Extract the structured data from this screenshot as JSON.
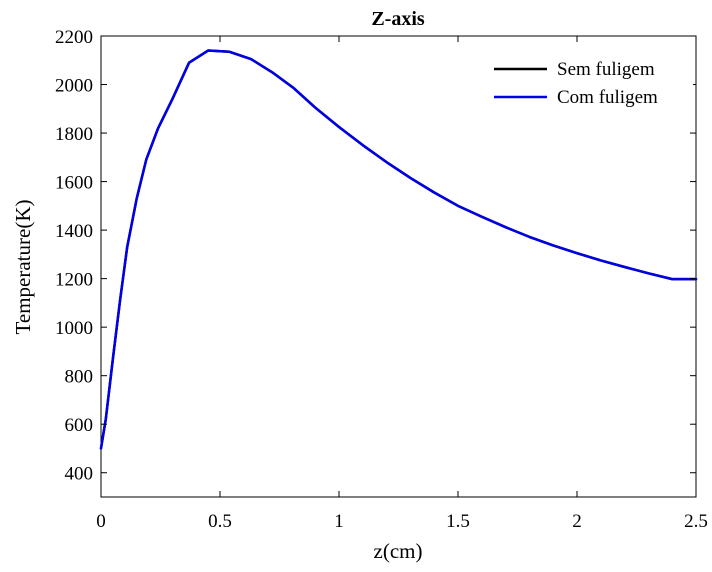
{
  "chart_data": {
    "type": "line",
    "title": "Z-axis",
    "xlabel": "z(cm)",
    "ylabel": "Temperature(K)",
    "xlim": [
      0,
      2.5
    ],
    "ylim": [
      300,
      2200
    ],
    "xticks": [
      0,
      0.5,
      1,
      1.5,
      2,
      2.5
    ],
    "xtick_labels": [
      "0",
      "0.5",
      "1",
      "1.5",
      "2",
      "2.5"
    ],
    "yticks": [
      400,
      600,
      800,
      1000,
      1200,
      1400,
      1600,
      1800,
      2000,
      2200
    ],
    "ytick_labels": [
      "400",
      "600",
      "800",
      "1000",
      "1200",
      "1400",
      "1600",
      "1800",
      "2000",
      "2200"
    ],
    "grid": false,
    "legend_position": "top-right",
    "series": [
      {
        "name": "Sem fuligem",
        "color": "#000000",
        "x": [
          0,
          0.02,
          0.05,
          0.08,
          0.11,
          0.15,
          0.19,
          0.24,
          0.3,
          0.37,
          0.45,
          0.54,
          0.63,
          0.72,
          0.81,
          0.9,
          1.0,
          1.1,
          1.2,
          1.3,
          1.4,
          1.5,
          1.6,
          1.7,
          1.8,
          1.9,
          2.0,
          2.1,
          2.2,
          2.3,
          2.4,
          2.5
        ],
        "y": [
          500,
          620,
          870,
          1110,
          1330,
          1530,
          1690,
          1820,
          1940,
          2090,
          2140,
          2135,
          2105,
          2050,
          1985,
          1905,
          1825,
          1750,
          1680,
          1615,
          1555,
          1500,
          1455,
          1412,
          1372,
          1337,
          1305,
          1275,
          1248,
          1222,
          1198,
          1198
        ]
      },
      {
        "name": "Com fuligem",
        "color": "#0000e6",
        "x": [
          0,
          0.02,
          0.05,
          0.08,
          0.11,
          0.15,
          0.19,
          0.24,
          0.3,
          0.37,
          0.45,
          0.54,
          0.63,
          0.72,
          0.81,
          0.9,
          1.0,
          1.1,
          1.2,
          1.3,
          1.4,
          1.5,
          1.6,
          1.7,
          1.8,
          1.9,
          2.0,
          2.1,
          2.2,
          2.3,
          2.4,
          2.5
        ],
        "y": [
          500,
          620,
          870,
          1110,
          1330,
          1530,
          1690,
          1820,
          1940,
          2090,
          2140,
          2135,
          2105,
          2050,
          1985,
          1905,
          1825,
          1750,
          1680,
          1615,
          1555,
          1500,
          1455,
          1412,
          1372,
          1337,
          1305,
          1275,
          1248,
          1222,
          1198,
          1198
        ]
      }
    ]
  }
}
